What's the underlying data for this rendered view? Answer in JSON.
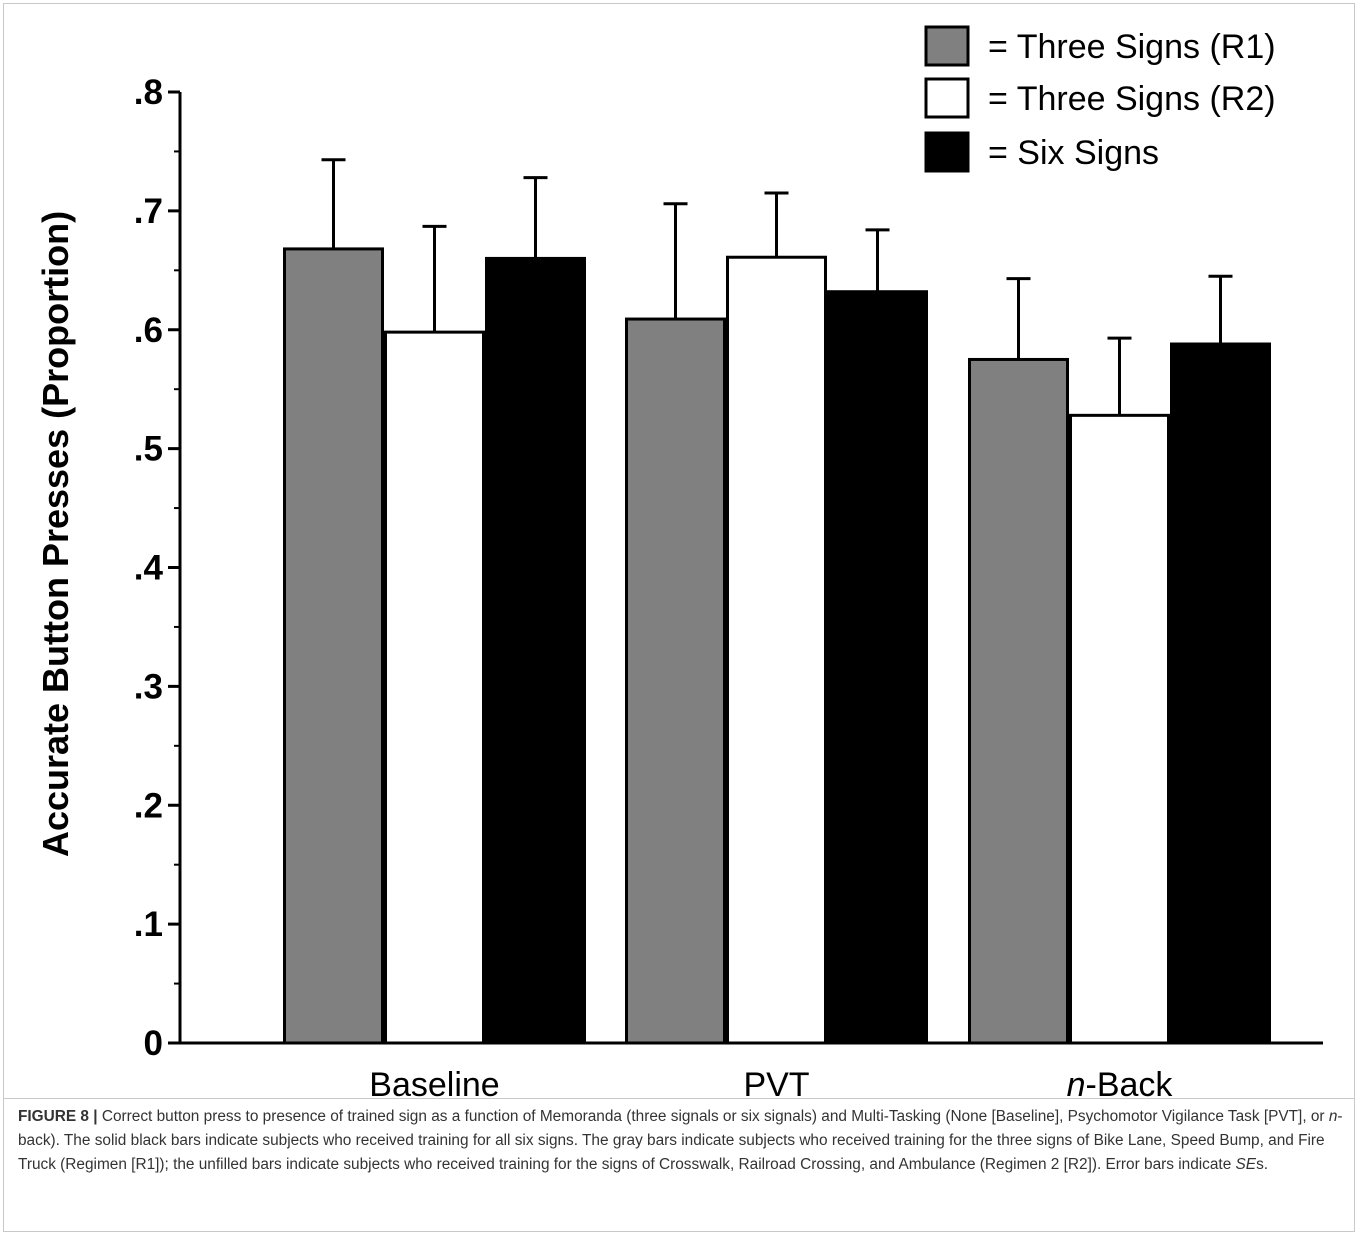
{
  "chart_data": {
    "type": "bar",
    "ylabel": "Accurate Button Presses (Proportion)",
    "xlabel": "",
    "ylim": [
      0,
      0.8
    ],
    "yticks": [
      {
        "value": 0,
        "label": "0"
      },
      {
        "value": 0.1,
        "label": ".1"
      },
      {
        "value": 0.2,
        "label": ".2"
      },
      {
        "value": 0.3,
        "label": ".3"
      },
      {
        "value": 0.4,
        "label": ".4"
      },
      {
        "value": 0.5,
        "label": ".5"
      },
      {
        "value": 0.6,
        "label": ".6"
      },
      {
        "value": 0.7,
        "label": ".7"
      },
      {
        "value": 0.8,
        "label": ".8"
      }
    ],
    "categories": [
      {
        "prefix": "",
        "italic": "",
        "rest": "Baseline"
      },
      {
        "prefix": "",
        "italic": "",
        "rest": "PVT"
      },
      {
        "prefix": "",
        "italic": "n",
        "rest": "-Back"
      }
    ],
    "series": [
      {
        "name": "= Three Signs (R1)",
        "color": "#808080",
        "values": [
          0.668,
          0.609,
          0.575
        ],
        "errors": [
          0.075,
          0.097,
          0.068
        ]
      },
      {
        "name": "= Three Signs (R2)",
        "color": "#ffffff",
        "values": [
          0.598,
          0.661,
          0.528
        ],
        "errors": [
          0.089,
          0.054,
          0.065
        ]
      },
      {
        "name": "= Six Signs",
        "color": "#000000",
        "values": [
          0.66,
          0.632,
          0.588
        ],
        "errors": [
          0.068,
          0.052,
          0.057
        ]
      }
    ],
    "legend_position": "top-right",
    "error_bars": "SE",
    "grid": false
  },
  "caption": {
    "label": "FIGURE 8 |",
    "text_1": " Correct button press to presence of trained sign as a function of Memoranda (three signals or six signals) and Multi-Tasking (None [Baseline], Psychomotor Vigilance Task [PVT], or ",
    "italic_1": "n",
    "text_2": "-back). The solid black bars indicate subjects who received training for all six signs. The gray bars indicate subjects who received training for the three signs of Bike Lane, Speed Bump, and Fire Truck (Regimen [R1]); the unfilled bars indicate subjects who received training for the signs of Crosswalk, Railroad Crossing, and Ambulance (Regimen 2 [R2]). Error bars indicate ",
    "italic_2": "SE",
    "text_3": "s."
  }
}
